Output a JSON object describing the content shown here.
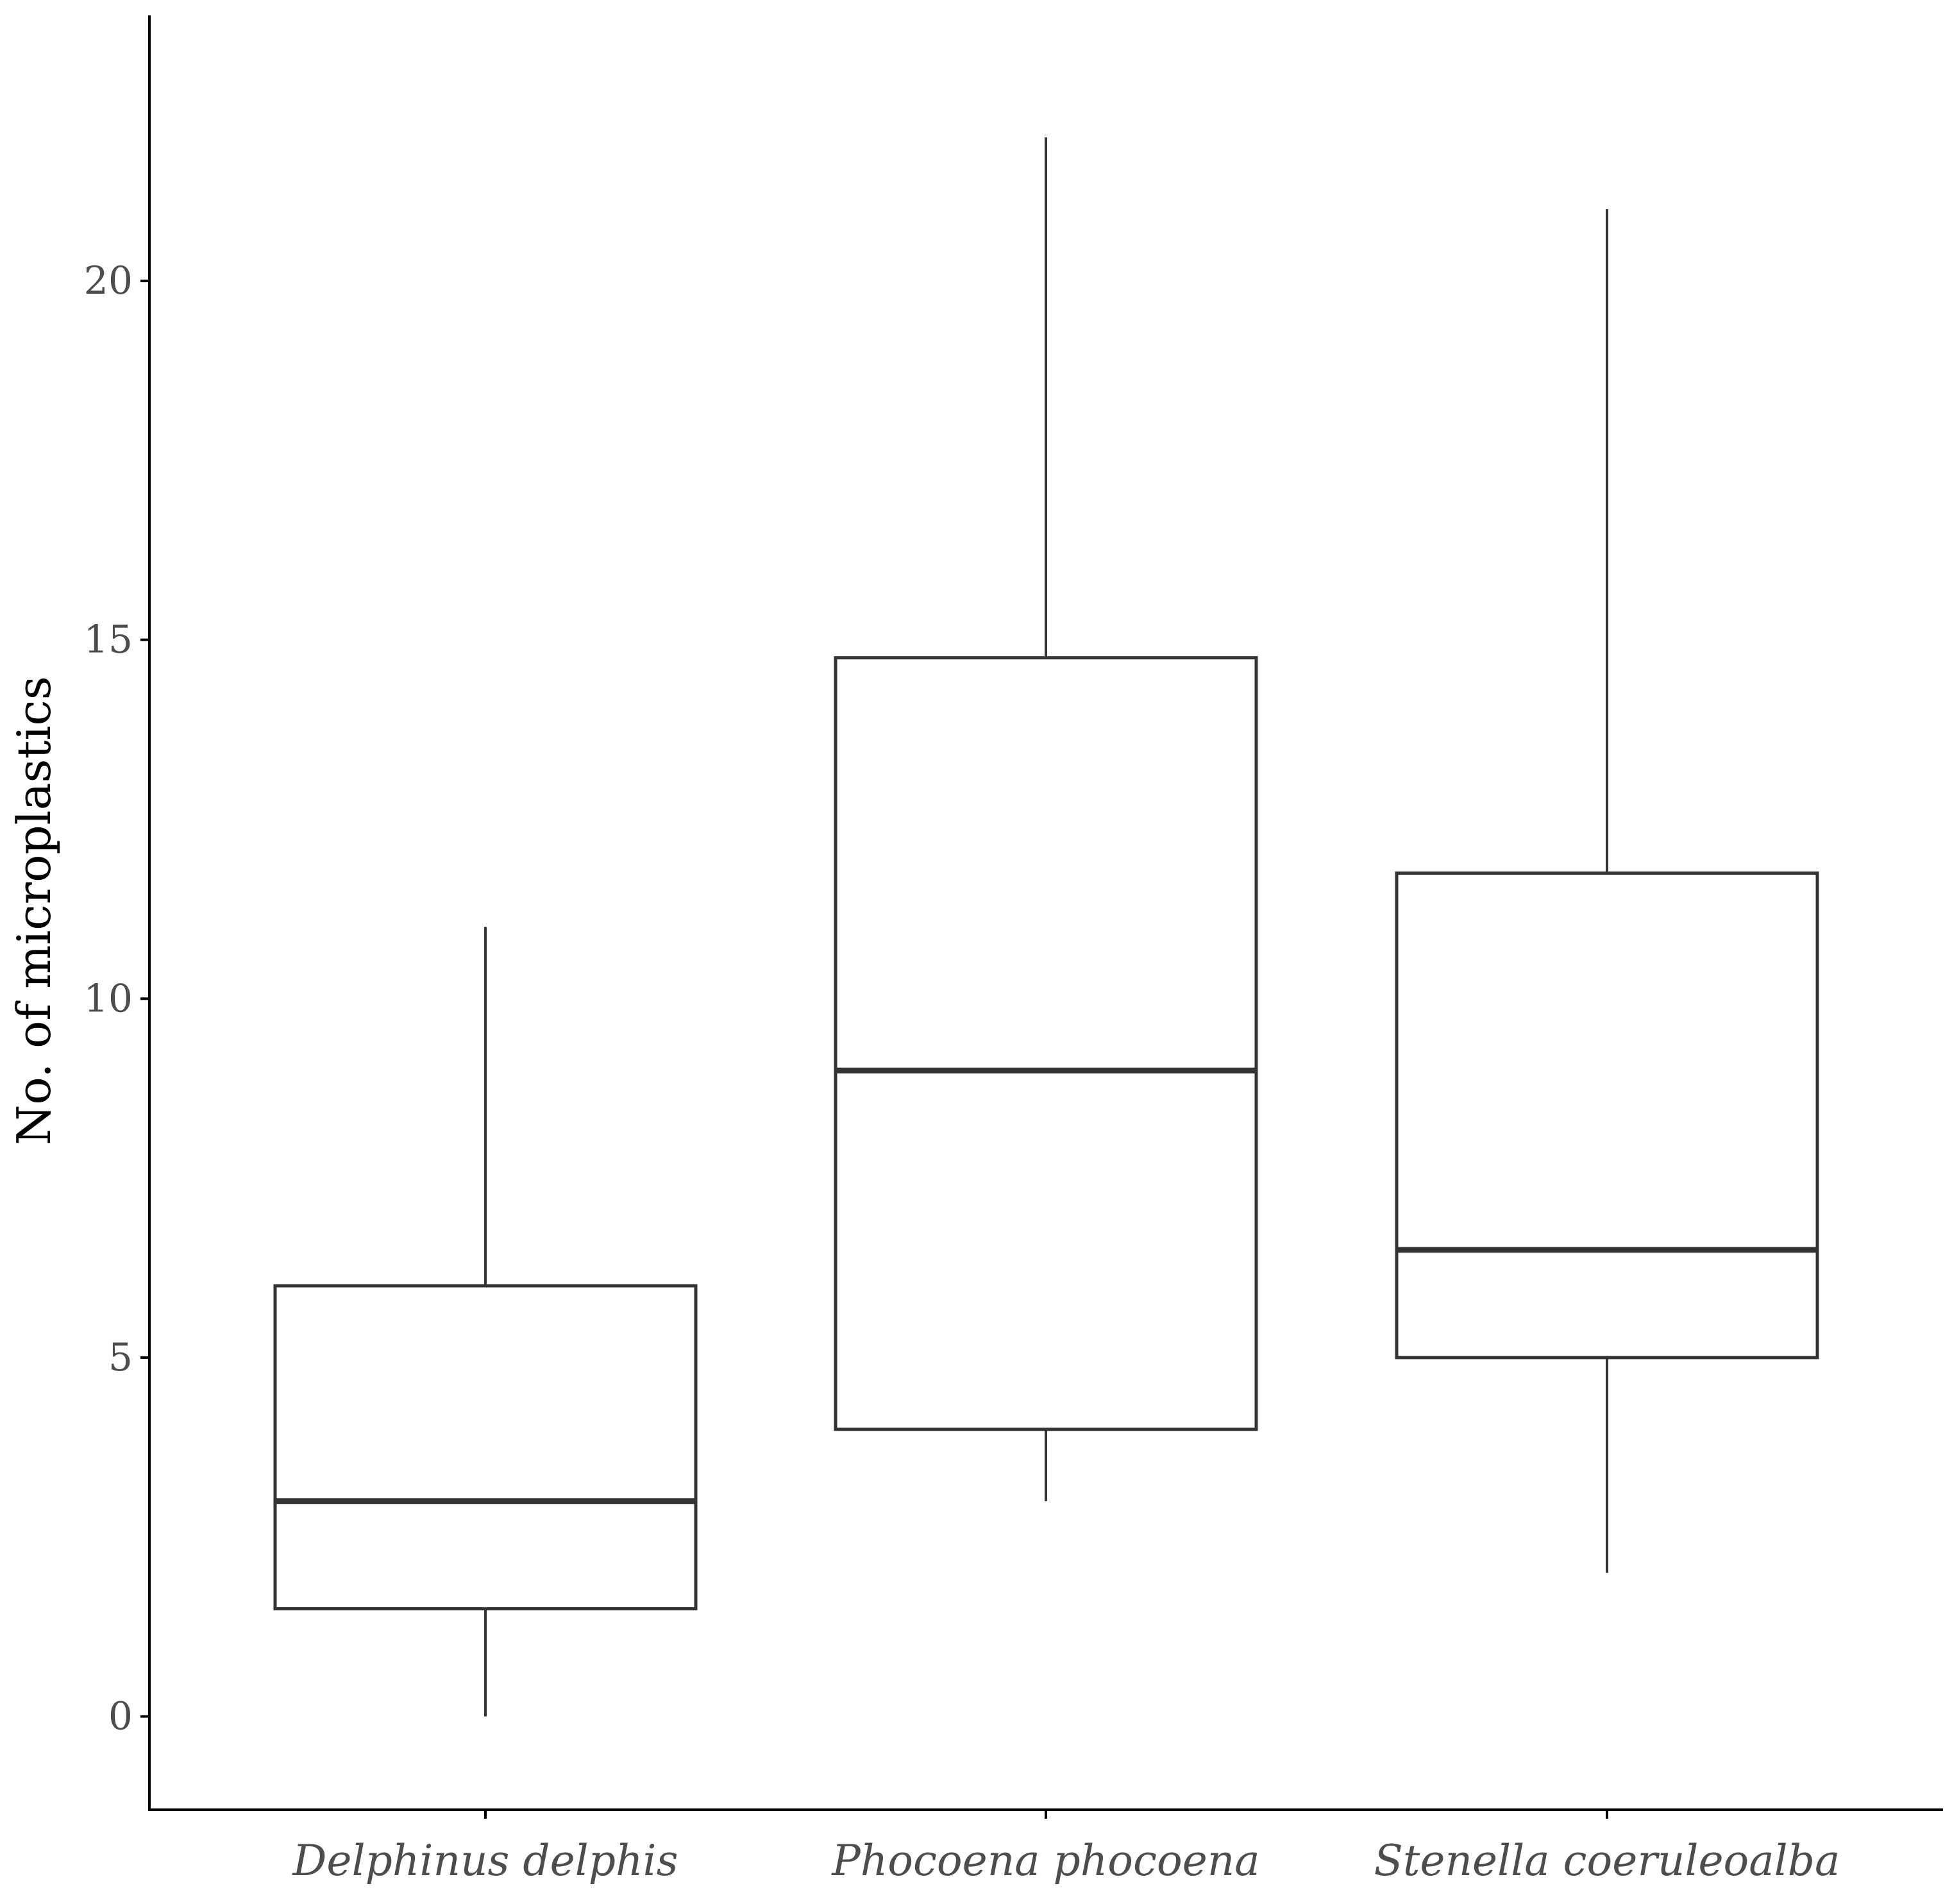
{
  "chart_data": {
    "type": "box",
    "title": "",
    "xlabel": "",
    "ylabel": "No. of microplastics",
    "ylim": [
      -1.3,
      23.7
    ],
    "yticks": [
      0,
      5,
      10,
      15,
      20
    ],
    "grid": false,
    "categories": [
      "Delphinus delphis",
      "Phocoena phocoena",
      "Stenella coeruleoalba"
    ],
    "boxes": [
      {
        "category": "Delphinus delphis",
        "whisker_low": 0,
        "q1": 1.5,
        "median": 3,
        "q3": 6,
        "whisker_high": 11
      },
      {
        "category": "Phocoena phocoena",
        "whisker_low": 3,
        "q1": 4,
        "median": 9,
        "q3": 14.75,
        "whisker_high": 22
      },
      {
        "category": "Stenella coeruleoalba",
        "whisker_low": 2,
        "q1": 5,
        "median": 6.5,
        "q3": 11.75,
        "whisker_high": 21
      }
    ],
    "colors": {
      "box_stroke": "#333333",
      "axis": "#000000",
      "tick_label": "#4d4d4d",
      "background": "#ffffff"
    }
  }
}
